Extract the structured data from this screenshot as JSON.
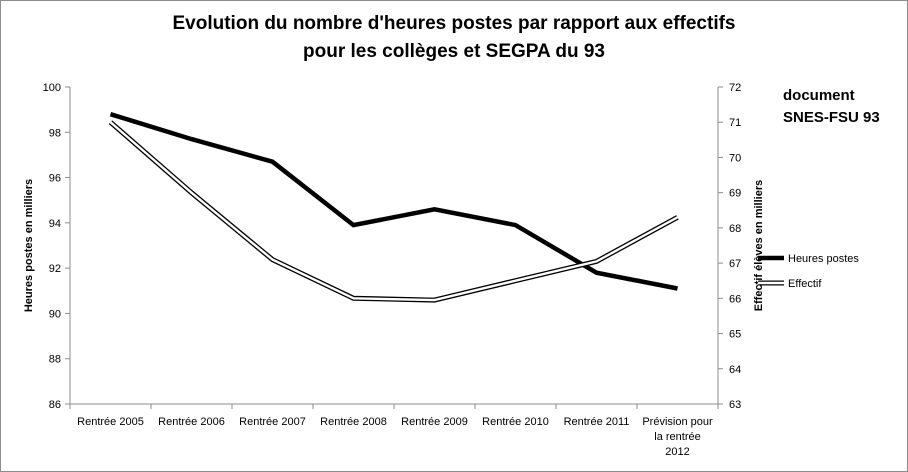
{
  "chart_data": {
    "type": "line",
    "title_lines": [
      "Evolution du nombre d'heures postes par rapport aux effectifs",
      "pour les collèges et SEGPA du 93"
    ],
    "categories": [
      [
        "Rentrée 2005"
      ],
      [
        "Rentrée 2006"
      ],
      [
        "Rentrée 2007"
      ],
      [
        "Rentrée 2008"
      ],
      [
        "Rentrée 2009"
      ],
      [
        "Rentrée 2010"
      ],
      [
        "Rentrée 2011"
      ],
      [
        "Prévision pour",
        "la rentrée",
        "2012"
      ]
    ],
    "ylabel_left": "Heures postes en milliers",
    "ylabel_right": "Effectif élèves en milliers",
    "ylim_left": [
      86,
      100
    ],
    "yticks_left": [
      86,
      88,
      90,
      92,
      94,
      96,
      98,
      100
    ],
    "ylim_right": [
      63,
      72
    ],
    "yticks_right": [
      63,
      64,
      65,
      66,
      67,
      68,
      69,
      70,
      71,
      72
    ],
    "grid": false,
    "legend_position": "right",
    "series": [
      {
        "name": "Heures postes",
        "axis": "left",
        "style": "thick-black",
        "color": "#000000",
        "values": [
          98.8,
          97.7,
          96.7,
          93.9,
          94.6,
          93.9,
          91.8,
          91.1
        ]
      },
      {
        "name": "Effectif",
        "axis": "right",
        "style": "double-outline",
        "color": "#000000",
        "values": [
          71.0,
          69.0,
          67.1,
          66.0,
          65.95,
          66.5,
          67.05,
          68.3
        ]
      }
    ]
  },
  "document_note": [
    "document",
    "SNES-FSU 93"
  ]
}
